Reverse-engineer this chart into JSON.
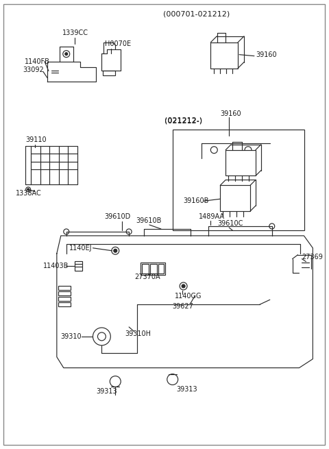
{
  "bg_color": "#ffffff",
  "line_color": "#2a2a2a",
  "text_color": "#1a1a1a",
  "labels": {
    "header1": "(000701-021212)",
    "header2": "(021212-)",
    "part_1339CC": "1339CC",
    "part_H0070E": "H0070E",
    "part_1140FB": "1140FB",
    "part_33092": "33092",
    "part_39110": "39110",
    "part_1338AC": "1338AC",
    "part_39160_top": "39160",
    "part_39160_mid": "39160",
    "part_39160B": "39160B",
    "part_39610D": "39610D",
    "part_39610B": "39610B",
    "part_39610C": "39610C",
    "part_1489AA": "1489AA",
    "part_1140EJ": "1140EJ",
    "part_11403B": "11403B",
    "part_27370A": "27370A",
    "part_1140GG": "1140GG",
    "part_39627": "39627",
    "part_27369": "27369",
    "part_39310": "39310",
    "part_39310H": "39310H",
    "part_39313a": "39313",
    "part_39313b": "39313"
  }
}
